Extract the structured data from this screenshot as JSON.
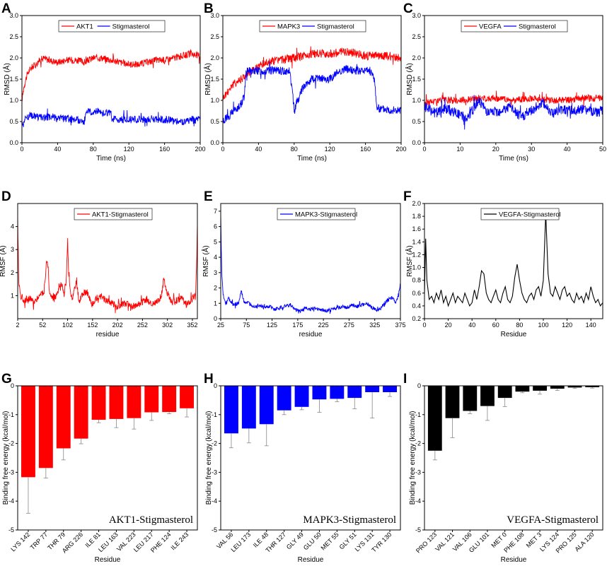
{
  "figure": {
    "panel_labels": [
      "A",
      "B",
      "C",
      "D",
      "E",
      "F",
      "G",
      "H",
      "I"
    ]
  },
  "chart_data": [
    {
      "panel": "A",
      "type": "line",
      "xlabel": "Time (ns)",
      "ylabel": "RMSD (Å)",
      "xlim": [
        0,
        200
      ],
      "ylim": [
        0,
        3.0
      ],
      "xticks": [
        "0",
        "40",
        "80",
        "120",
        "160",
        "200"
      ],
      "yticks": [
        "0.0",
        "0.5",
        "1.0",
        "1.5",
        "2.0",
        "2.5",
        "3.0"
      ],
      "series": [
        {
          "name": "AKT1",
          "color": "#ff0000",
          "x": [
            0,
            2,
            5,
            8,
            12,
            16,
            20,
            25,
            30,
            40,
            50,
            60,
            70,
            80,
            90,
            100,
            110,
            120,
            130,
            140,
            150,
            160,
            170,
            180,
            190,
            200
          ],
          "y": [
            1.0,
            1.3,
            1.55,
            1.7,
            1.8,
            1.85,
            1.95,
            2.0,
            1.95,
            1.9,
            1.95,
            1.95,
            1.9,
            2.0,
            2.0,
            1.95,
            1.9,
            1.85,
            1.85,
            1.9,
            1.95,
            1.95,
            2.0,
            2.05,
            2.1,
            2.05
          ],
          "noise": 0.08
        },
        {
          "name": "Stigmasterol",
          "color": "#0000ff",
          "x": [
            0,
            5,
            10,
            20,
            40,
            60,
            70,
            72,
            80,
            90,
            100,
            101,
            120,
            140,
            160,
            180,
            200
          ],
          "y": [
            0.45,
            0.6,
            0.65,
            0.6,
            0.6,
            0.55,
            0.5,
            0.7,
            0.75,
            0.72,
            0.7,
            0.55,
            0.55,
            0.55,
            0.55,
            0.5,
            0.55
          ],
          "noise": 0.09
        }
      ]
    },
    {
      "panel": "B",
      "type": "line",
      "xlabel": "Time (ns)",
      "ylabel": "RMSD (Å)",
      "xlim": [
        0,
        200
      ],
      "ylim": [
        0,
        3.0
      ],
      "xticks": [
        "0",
        "40",
        "80",
        "120",
        "160",
        "200"
      ],
      "yticks": [
        "0.0",
        "0.5",
        "1.0",
        "1.5",
        "2.0",
        "2.5",
        "3.0"
      ],
      "series": [
        {
          "name": "MAPK3",
          "color": "#ff0000",
          "x": [
            0,
            5,
            10,
            20,
            30,
            40,
            50,
            60,
            80,
            100,
            120,
            140,
            160,
            180,
            200
          ],
          "y": [
            1.05,
            1.2,
            1.35,
            1.5,
            1.65,
            1.8,
            1.9,
            1.95,
            2.0,
            2.1,
            2.1,
            2.15,
            2.05,
            2.05,
            2.0
          ],
          "noise": 0.1
        },
        {
          "name": "Stigmasterol",
          "color": "#0000ff",
          "x": [
            0,
            10,
            20,
            24,
            26,
            40,
            60,
            75,
            78,
            80,
            90,
            100,
            120,
            130,
            140,
            150,
            165,
            170,
            173,
            180,
            200
          ],
          "y": [
            0.5,
            0.7,
            0.9,
            1.1,
            1.7,
            1.7,
            1.7,
            1.7,
            1.2,
            0.8,
            1.3,
            1.5,
            1.5,
            1.7,
            1.75,
            1.7,
            1.7,
            1.5,
            0.8,
            0.8,
            0.75
          ],
          "noise": 0.1
        }
      ]
    },
    {
      "panel": "C",
      "type": "line",
      "xlabel": "Time (ns)",
      "ylabel": "RMSD (Å)",
      "xlim": [
        0,
        50
      ],
      "ylim": [
        0,
        3.0
      ],
      "xticks": [
        "0",
        "10",
        "20",
        "30",
        "40",
        "50"
      ],
      "yticks": [
        "0.0",
        "0.5",
        "1.0",
        "1.5",
        "2.0",
        "2.5",
        "3.0"
      ],
      "series": [
        {
          "name": "VEGFA",
          "color": "#ff0000",
          "x": [
            0,
            5,
            10,
            15,
            20,
            25,
            30,
            35,
            40,
            45,
            50
          ],
          "y": [
            0.95,
            1.0,
            1.0,
            1.05,
            1.05,
            1.0,
            1.05,
            1.0,
            1.0,
            1.05,
            1.05
          ],
          "noise": 0.08
        },
        {
          "name": "Stigmasterol",
          "color": "#0000ff",
          "x": [
            0,
            3,
            6,
            9,
            12,
            15,
            18,
            21,
            24,
            27,
            30,
            33,
            36,
            39,
            42,
            45,
            47,
            50
          ],
          "y": [
            0.85,
            0.7,
            0.8,
            0.7,
            0.55,
            1.0,
            0.7,
            0.75,
            0.85,
            0.6,
            0.75,
            0.95,
            0.7,
            0.8,
            0.75,
            0.8,
            0.7,
            0.75
          ],
          "noise": 0.12
        }
      ]
    },
    {
      "panel": "D",
      "type": "line",
      "xlabel": "residue",
      "ylabel": "RMSF (Å)",
      "xlim": [
        2,
        362
      ],
      "ylim": [
        0,
        5
      ],
      "xticks": [
        "2",
        "52",
        "102",
        "152",
        "202",
        "252",
        "302",
        "352"
      ],
      "yticks": [
        "1",
        "2",
        "3",
        "4"
      ],
      "series": [
        {
          "name": "AKT1-Stigmasterol",
          "color": "#ff0000",
          "x": [
            2,
            4,
            8,
            15,
            25,
            35,
            45,
            55,
            60,
            63,
            66,
            70,
            80,
            90,
            95,
            100,
            102,
            104,
            108,
            112,
            120,
            125,
            130,
            140,
            150,
            160,
            170,
            180,
            190,
            200,
            210,
            220,
            230,
            240,
            250,
            260,
            270,
            280,
            290,
            295,
            300,
            310,
            320,
            330,
            340,
            350,
            356,
            358,
            360,
            362
          ],
          "y": [
            4.5,
            1.6,
            1.0,
            0.8,
            0.9,
            0.7,
            1.0,
            1.2,
            2.5,
            2.2,
            1.0,
            0.9,
            1.0,
            1.5,
            1.0,
            2.0,
            3.5,
            2.0,
            1.0,
            0.9,
            1.6,
            0.7,
            1.0,
            1.2,
            0.6,
            0.9,
            1.0,
            0.8,
            0.7,
            0.5,
            0.6,
            0.7,
            0.5,
            0.6,
            0.7,
            0.8,
            0.6,
            0.7,
            1.0,
            1.8,
            1.2,
            0.7,
            0.8,
            0.9,
            0.6,
            0.8,
            1.0,
            0.9,
            2.0,
            4.1
          ],
          "noise": 0.15
        }
      ]
    },
    {
      "panel": "E",
      "type": "line",
      "xlabel": "residue",
      "ylabel": "RMSF (Å)",
      "xlim": [
        25,
        375
      ],
      "ylim": [
        0,
        7.5
      ],
      "xticks": [
        "25",
        "75",
        "125",
        "175",
        "225",
        "275",
        "325",
        "375"
      ],
      "yticks": [
        "0",
        "1",
        "2",
        "3",
        "4",
        "5",
        "6",
        "7"
      ],
      "series": [
        {
          "name": "MAPK3-Stigmasterol",
          "color": "#0000ff",
          "x": [
            25,
            27,
            30,
            35,
            40,
            50,
            60,
            65,
            70,
            80,
            90,
            100,
            110,
            120,
            130,
            140,
            150,
            160,
            170,
            180,
            190,
            200,
            210,
            220,
            230,
            240,
            250,
            260,
            270,
            280,
            290,
            300,
            310,
            320,
            330,
            340,
            350,
            360,
            365,
            370,
            375
          ],
          "y": [
            6.8,
            3.0,
            1.5,
            1.0,
            1.3,
            0.9,
            1.0,
            1.8,
            1.1,
            1.0,
            0.8,
            0.9,
            0.7,
            0.8,
            0.6,
            0.7,
            0.8,
            0.9,
            0.6,
            0.5,
            0.7,
            0.6,
            0.7,
            0.6,
            0.5,
            0.6,
            0.7,
            0.8,
            0.7,
            0.9,
            0.8,
            0.9,
            1.0,
            0.7,
            0.5,
            0.8,
            1.2,
            1.4,
            1.0,
            1.4,
            2.3
          ],
          "noise": 0.12
        }
      ]
    },
    {
      "panel": "F",
      "type": "line",
      "xlabel": "Residue",
      "ylabel": "RMSF (Å)",
      "xlim": [
        0,
        150
      ],
      "ylim": [
        0.2,
        2.0
      ],
      "xticks": [
        "0",
        "20",
        "40",
        "60",
        "80",
        "100",
        "120",
        "140"
      ],
      "yticks": [
        "0.2",
        "0.4",
        "0.6",
        "0.8",
        "1.0",
        "1.2",
        "1.4",
        "1.6",
        "1.8",
        "2.0"
      ],
      "series": [
        {
          "name": "VEGFA-Stigmasterol",
          "color": "#000000",
          "x": [
            0,
            1,
            2,
            4,
            6,
            8,
            10,
            12,
            14,
            16,
            18,
            20,
            22,
            24,
            26,
            28,
            30,
            32,
            34,
            36,
            38,
            40,
            42,
            44,
            46,
            48,
            50,
            52,
            54,
            56,
            58,
            60,
            62,
            64,
            66,
            68,
            70,
            72,
            74,
            76,
            78,
            80,
            82,
            84,
            86,
            88,
            90,
            92,
            94,
            96,
            98,
            100,
            102,
            104,
            106,
            108,
            110,
            112,
            114,
            116,
            118,
            120,
            122,
            124,
            126,
            128,
            130,
            132,
            134,
            136,
            138,
            140,
            142,
            144,
            146,
            148,
            150
          ],
          "y": [
            0.6,
            1.45,
            0.8,
            0.5,
            0.55,
            0.45,
            0.6,
            0.5,
            0.65,
            0.45,
            0.55,
            0.4,
            0.5,
            0.6,
            0.45,
            0.55,
            0.5,
            0.45,
            0.6,
            0.5,
            0.4,
            0.45,
            0.65,
            0.5,
            0.7,
            0.95,
            0.9,
            0.6,
            0.5,
            0.45,
            0.55,
            0.65,
            0.5,
            0.45,
            0.6,
            0.7,
            0.5,
            0.45,
            0.55,
            0.85,
            1.05,
            0.8,
            0.6,
            0.5,
            0.45,
            0.55,
            0.6,
            0.5,
            0.65,
            0.7,
            0.55,
            0.8,
            1.85,
            0.9,
            0.6,
            0.55,
            0.7,
            0.6,
            0.5,
            0.65,
            0.7,
            0.55,
            0.6,
            0.5,
            0.45,
            0.6,
            0.5,
            0.55,
            0.45,
            0.6,
            0.5,
            0.7,
            0.55,
            0.45,
            0.5,
            0.4,
            0.45
          ],
          "noise": 0.0
        }
      ]
    },
    {
      "panel": "G",
      "type": "bar",
      "title": "AKT1-Stigmasterol",
      "xlabel": "Residue",
      "ylabel": "Binding free energy (kcal/mol)",
      "ylim": [
        -5,
        0
      ],
      "yticks": [
        "-5",
        "-4",
        "-3",
        "-2",
        "-1",
        "0"
      ],
      "color": "#ff0000",
      "categories": [
        "LYS 142",
        "TRP 77",
        "THR 79",
        "ARG 226",
        "ILE 81",
        "LEU 163",
        "VAL 223",
        "LEU 217",
        "PHE 124",
        "ILE 243"
      ],
      "values": [
        -3.17,
        -2.85,
        -2.17,
        -1.83,
        -1.18,
        -1.15,
        -1.12,
        -0.92,
        -0.91,
        -0.78
      ],
      "errors": [
        1.25,
        0.35,
        0.4,
        0.18,
        0.1,
        0.3,
        0.38,
        0.28,
        0.06,
        0.3
      ]
    },
    {
      "panel": "H",
      "type": "bar",
      "title": "MAPK3-Stigmasterol",
      "xlabel": "Residue",
      "ylabel": "Binding free energy (kcal/mol)",
      "ylim": [
        -5,
        0
      ],
      "yticks": [
        "-5",
        "-4",
        "-3",
        "-2",
        "-1",
        "0"
      ],
      "color": "#0000ff",
      "categories": [
        "VAL 56",
        "LEU 173",
        "ILE 48",
        "THR 127",
        "GLY 49",
        "GLU 50",
        "MET 55",
        "GLY 51",
        "LYS 131",
        "TYR 130"
      ],
      "values": [
        -1.65,
        -1.48,
        -1.33,
        -0.85,
        -0.73,
        -0.47,
        -0.45,
        -0.42,
        -0.22,
        -0.22
      ],
      "errors": [
        0.5,
        0.5,
        0.75,
        0.15,
        0.1,
        0.45,
        0.1,
        0.38,
        0.9,
        0.15
      ]
    },
    {
      "panel": "I",
      "type": "bar",
      "title": "VEGFA-Stigmasterol",
      "xlabel": "Residue",
      "ylabel": "Binding free energy (kcal/mol)",
      "ylim": [
        -5,
        0
      ],
      "yticks": [
        "-5",
        "-4",
        "-3",
        "-2",
        "-1",
        "0"
      ],
      "color": "#000000",
      "categories": [
        "PRO 123",
        "VAL 121",
        "VAL 106",
        "GLU 101",
        "MET 0",
        "PHE 108",
        "MET 3",
        "LYS 124",
        "PRO 125",
        "ALA 120"
      ],
      "values": [
        -2.25,
        -1.12,
        -0.87,
        -0.7,
        -0.42,
        -0.2,
        -0.17,
        -0.1,
        -0.06,
        -0.05
      ],
      "errors": [
        0.32,
        0.68,
        0.1,
        0.5,
        0.3,
        0.04,
        0.12,
        0.06,
        0.03,
        0.03
      ]
    }
  ]
}
